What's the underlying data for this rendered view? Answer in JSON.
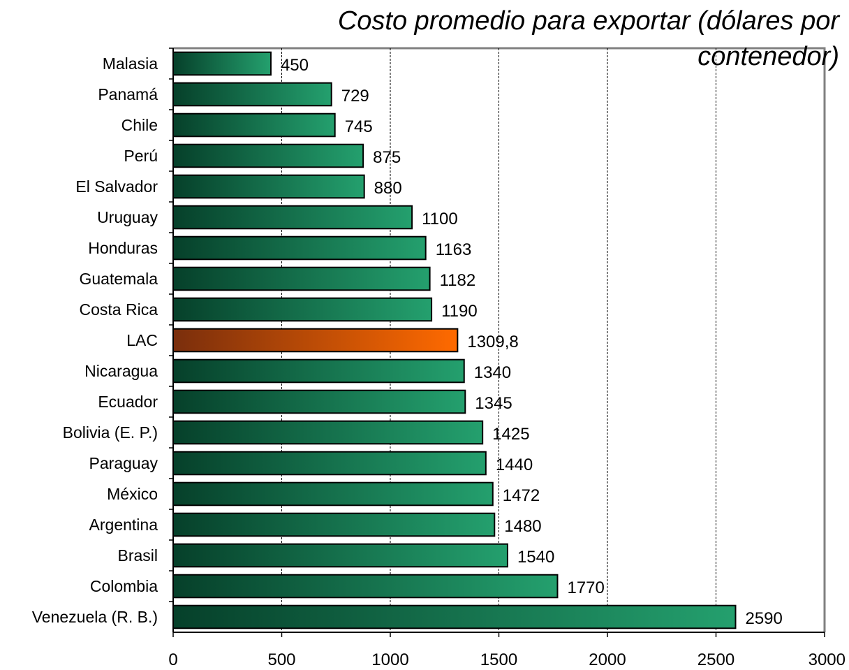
{
  "chart_data": {
    "type": "bar",
    "orientation": "horizontal",
    "title_lines": [
      "Costo  promedio para exportar (dólares por",
      "contenedor)"
    ],
    "xlabel": "",
    "ylabel": "",
    "xlim": [
      0,
      3000
    ],
    "xticks": [
      0,
      500,
      1000,
      1500,
      2000,
      2500,
      3000
    ],
    "grid": "vertical-dashed",
    "categories": [
      "Malasia",
      "Panamá",
      "Chile",
      "Perú",
      "El Salvador",
      "Uruguay",
      "Honduras",
      "Guatemala",
      "Costa Rica",
      "LAC",
      "Nicaragua",
      "Ecuador",
      "Bolivia (E. P.)",
      "Paraguay",
      "México",
      "Argentina",
      "Brasil",
      "Colombia",
      "Venezuela (R. B.)"
    ],
    "values": [
      450,
      729,
      745,
      875,
      880,
      1100,
      1163,
      1182,
      1190,
      1309.8,
      1340,
      1345,
      1425,
      1440,
      1472,
      1480,
      1540,
      1770,
      2590
    ],
    "value_labels": [
      "450",
      "729",
      "745",
      "875",
      "880",
      "1100",
      "1163",
      "1182",
      "1190",
      "1309,8",
      "1340",
      "1345",
      "1425",
      "1440",
      "1472",
      "1480",
      "1540",
      "1770",
      "2590"
    ],
    "highlight_category": "LAC",
    "colors": {
      "bar_dark": "#06402a",
      "bar_light": "#24a06e",
      "highlight_dark": "#7a2e0c",
      "highlight_light": "#ff6a00",
      "bar_border": "#000000",
      "grid": "#000000",
      "frame": "#808080"
    }
  }
}
